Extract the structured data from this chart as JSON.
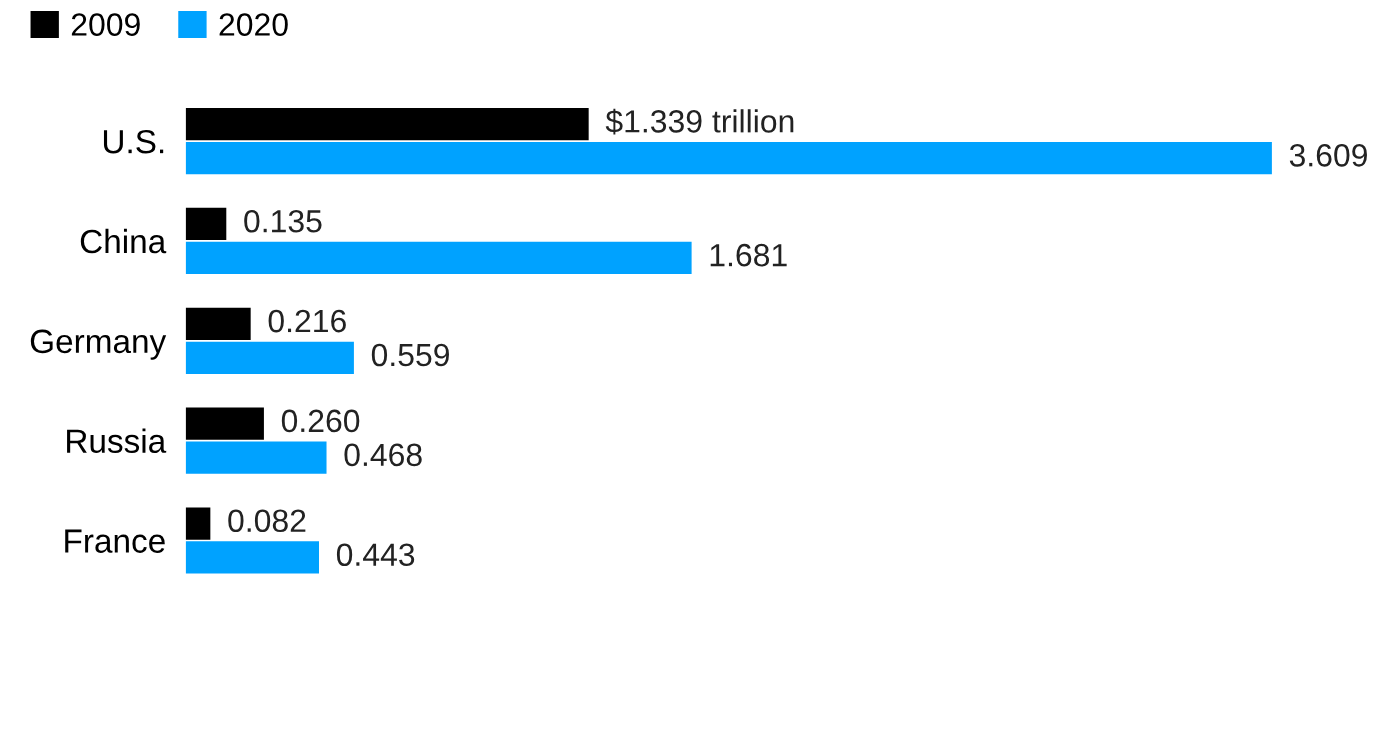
{
  "chart_data": {
    "type": "bar",
    "orientation": "horizontal",
    "categories": [
      "U.S.",
      "China",
      "Germany",
      "Russia",
      "France"
    ],
    "series": [
      {
        "name": "2009",
        "color": "#000000",
        "values": [
          1.339,
          0.135,
          0.216,
          0.26,
          0.082
        ],
        "value_labels": [
          "$1.339 trillion",
          "0.135",
          "0.216",
          "0.260",
          "0.082"
        ]
      },
      {
        "name": "2020",
        "color": "#00a2ff",
        "values": [
          3.609,
          1.681,
          0.559,
          0.468,
          0.443
        ],
        "value_labels": [
          "3.609",
          "1.681",
          "0.559",
          "0.468",
          "0.443"
        ]
      }
    ],
    "tick_labels": "y",
    "legend": "top left",
    "grid": false
  }
}
